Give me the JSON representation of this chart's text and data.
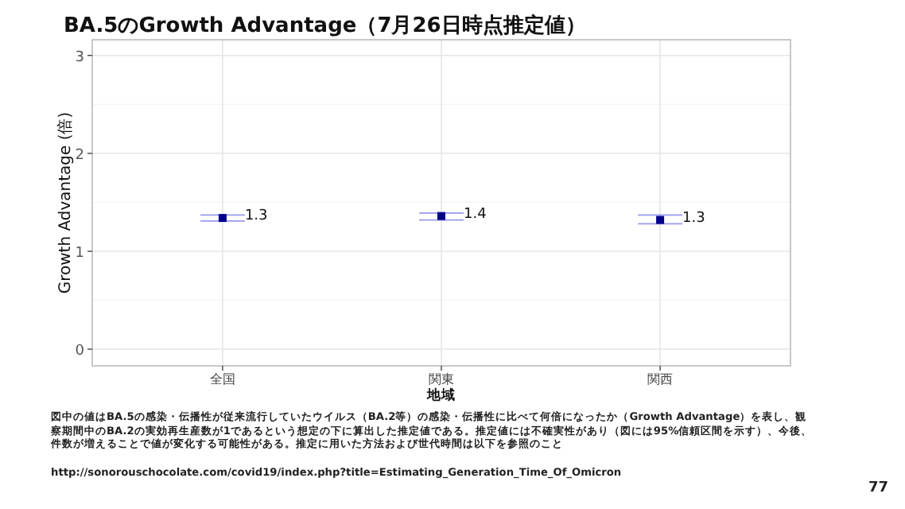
{
  "chart_data": {
    "type": "scatter",
    "title": "BA.5のGrowth Advantage（7月26日時点推定値）",
    "xlabel": "地域",
    "ylabel": "Growth Advantage (倍)",
    "categories": [
      "全国",
      "関東",
      "関西"
    ],
    "values": [
      1.34,
      1.36,
      1.32
    ],
    "errors": [
      [
        1.31,
        1.37
      ],
      [
        1.32,
        1.39
      ],
      [
        1.28,
        1.37
      ]
    ],
    "value_labels": [
      "1.3",
      "1.4",
      "1.3"
    ],
    "color": "#00008b",
    "marker": "square",
    "ylim": [
      -0.17,
      3.16
    ],
    "yticks": [
      0,
      1,
      2,
      3
    ],
    "grid": true,
    "annotations": [
      "図中の値はBA.5の感染・伝播性が従来流行していたウイルス（BA.2等）の感染・伝播性に比べて何倍になったか（Growth Advantage）を表し、観察期間中のBA.2の実効再生産数が1であるという想定の下に算出した推定値である。推定値には不確実性があり（図には95%信頼区間を示す）、今後、件数が増えることで値が変化する可能性がある。推定に用いた方法および世代時間は以下を参照のこと",
      "http://sonorouschocolate.com/covid19/index.php?title=Estimating_Generation_Time_Of_Omicron",
      "77"
    ]
  }
}
